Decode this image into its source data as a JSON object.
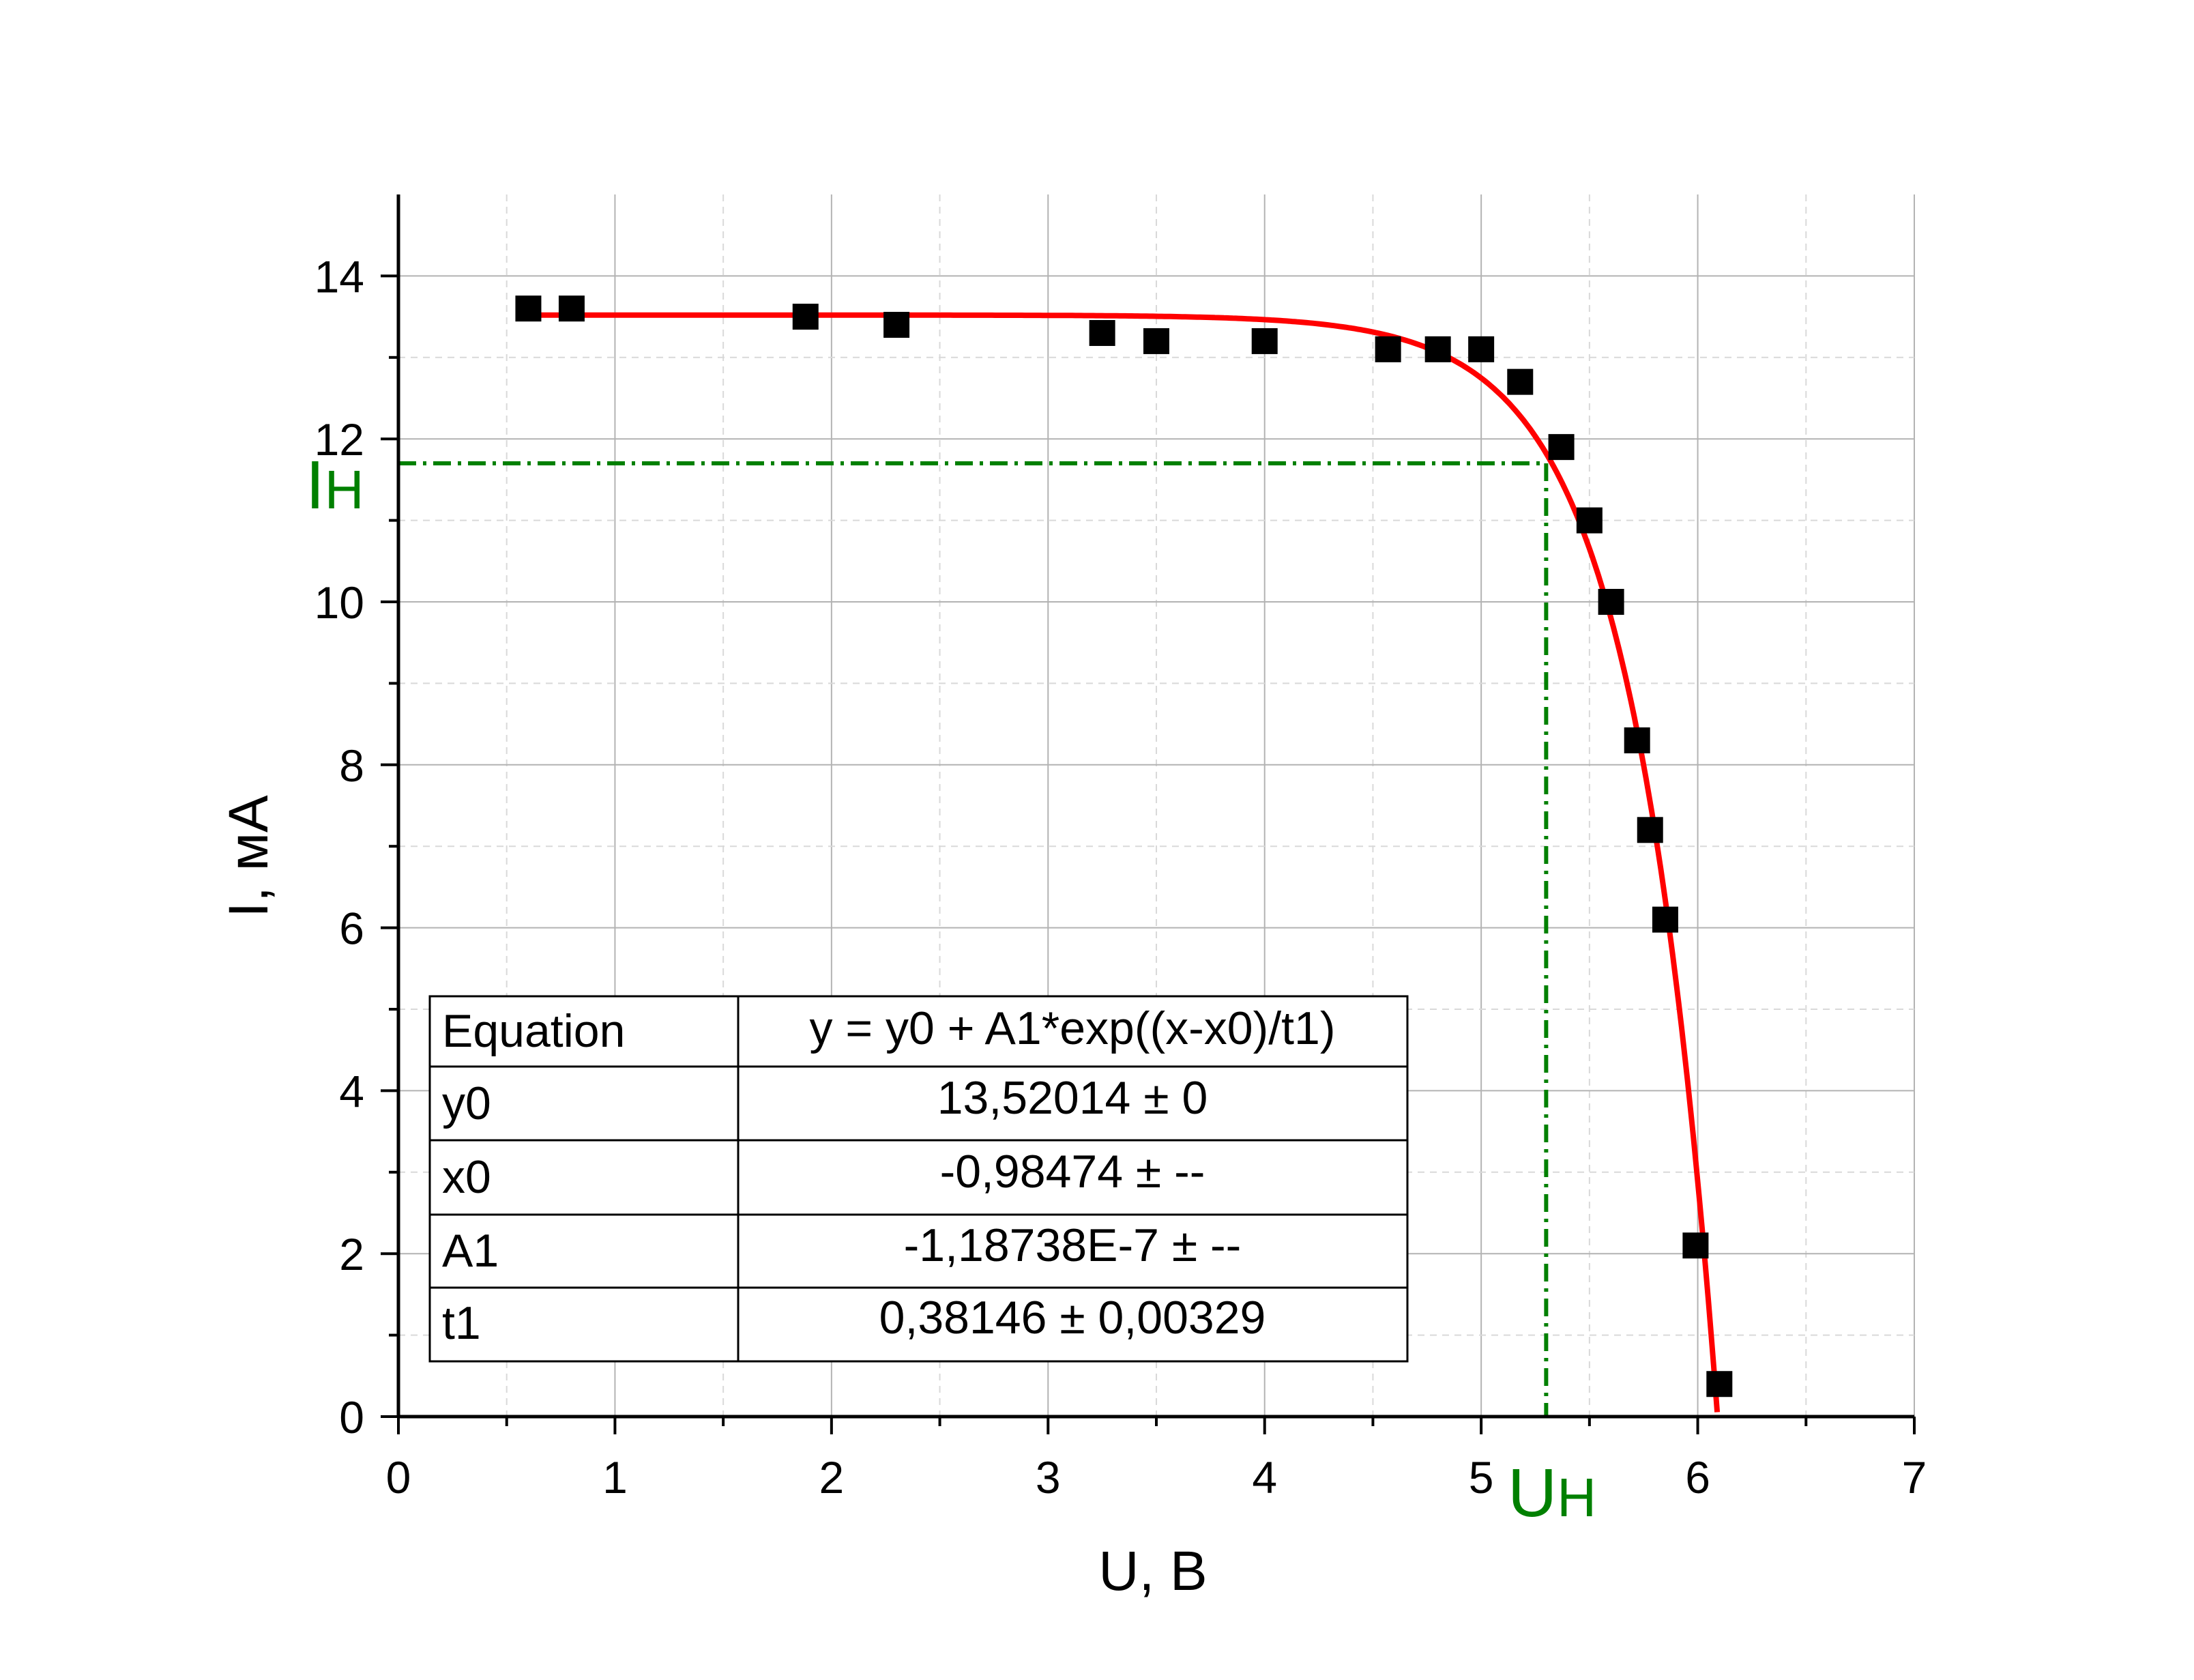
{
  "colors": {
    "fit_line": "#ff0000",
    "points": "#000000",
    "guide": "#008000",
    "grid_major": "#b3b3b3",
    "grid_minor": "#d9d9d9"
  },
  "chart_data": {
    "type": "scatter",
    "title": "",
    "xlabel": "U, В",
    "ylabel": "I, мА",
    "xlim": [
      0,
      7
    ],
    "ylim": [
      0,
      15
    ],
    "x_ticks": [
      "0",
      "1",
      "2",
      "3",
      "4",
      "5",
      "6",
      "7"
    ],
    "y_ticks": [
      "0",
      "2",
      "4",
      "6",
      "8",
      "10",
      "12",
      "14"
    ],
    "grid": true,
    "series": [
      {
        "kind": "points",
        "x": [
          0.6,
          0.8,
          1.88,
          2.3,
          3.25,
          3.5,
          4.0,
          4.57,
          4.8,
          5.0,
          5.18,
          5.37,
          5.5,
          5.6,
          5.72,
          5.78,
          5.85,
          5.99,
          6.1
        ],
        "y": [
          13.6,
          13.6,
          13.5,
          13.4,
          13.3,
          13.2,
          13.2,
          13.1,
          13.1,
          13.1,
          12.7,
          11.9,
          11.0,
          10.0,
          8.3,
          7.2,
          6.1,
          2.1,
          0.4
        ]
      },
      {
        "kind": "fit",
        "equation": {
          "y0": 13.52014,
          "x0": -0.98474,
          "A1": -1.18738e-07,
          "t1": 0.38146
        },
        "x_range": [
          0.6,
          6.09
        ]
      }
    ],
    "annotations": {
      "operating_point": {
        "x": 5.3,
        "y": 11.7
      },
      "x_marker": {
        "main": "U",
        "sub": "Н"
      },
      "y_marker": {
        "main": "I",
        "sub": "Н"
      }
    },
    "fit_table": {
      "headers": [
        "Equation",
        "y = y0 + A1*exp((x-x0)/t1)"
      ],
      "rows": [
        [
          "y0",
          "13,52014 ± 0"
        ],
        [
          "x0",
          "-0,98474 ± --"
        ],
        [
          "A1",
          "-1,18738E-7 ± --"
        ],
        [
          "t1",
          "0,38146 ± 0,00329"
        ]
      ]
    }
  }
}
